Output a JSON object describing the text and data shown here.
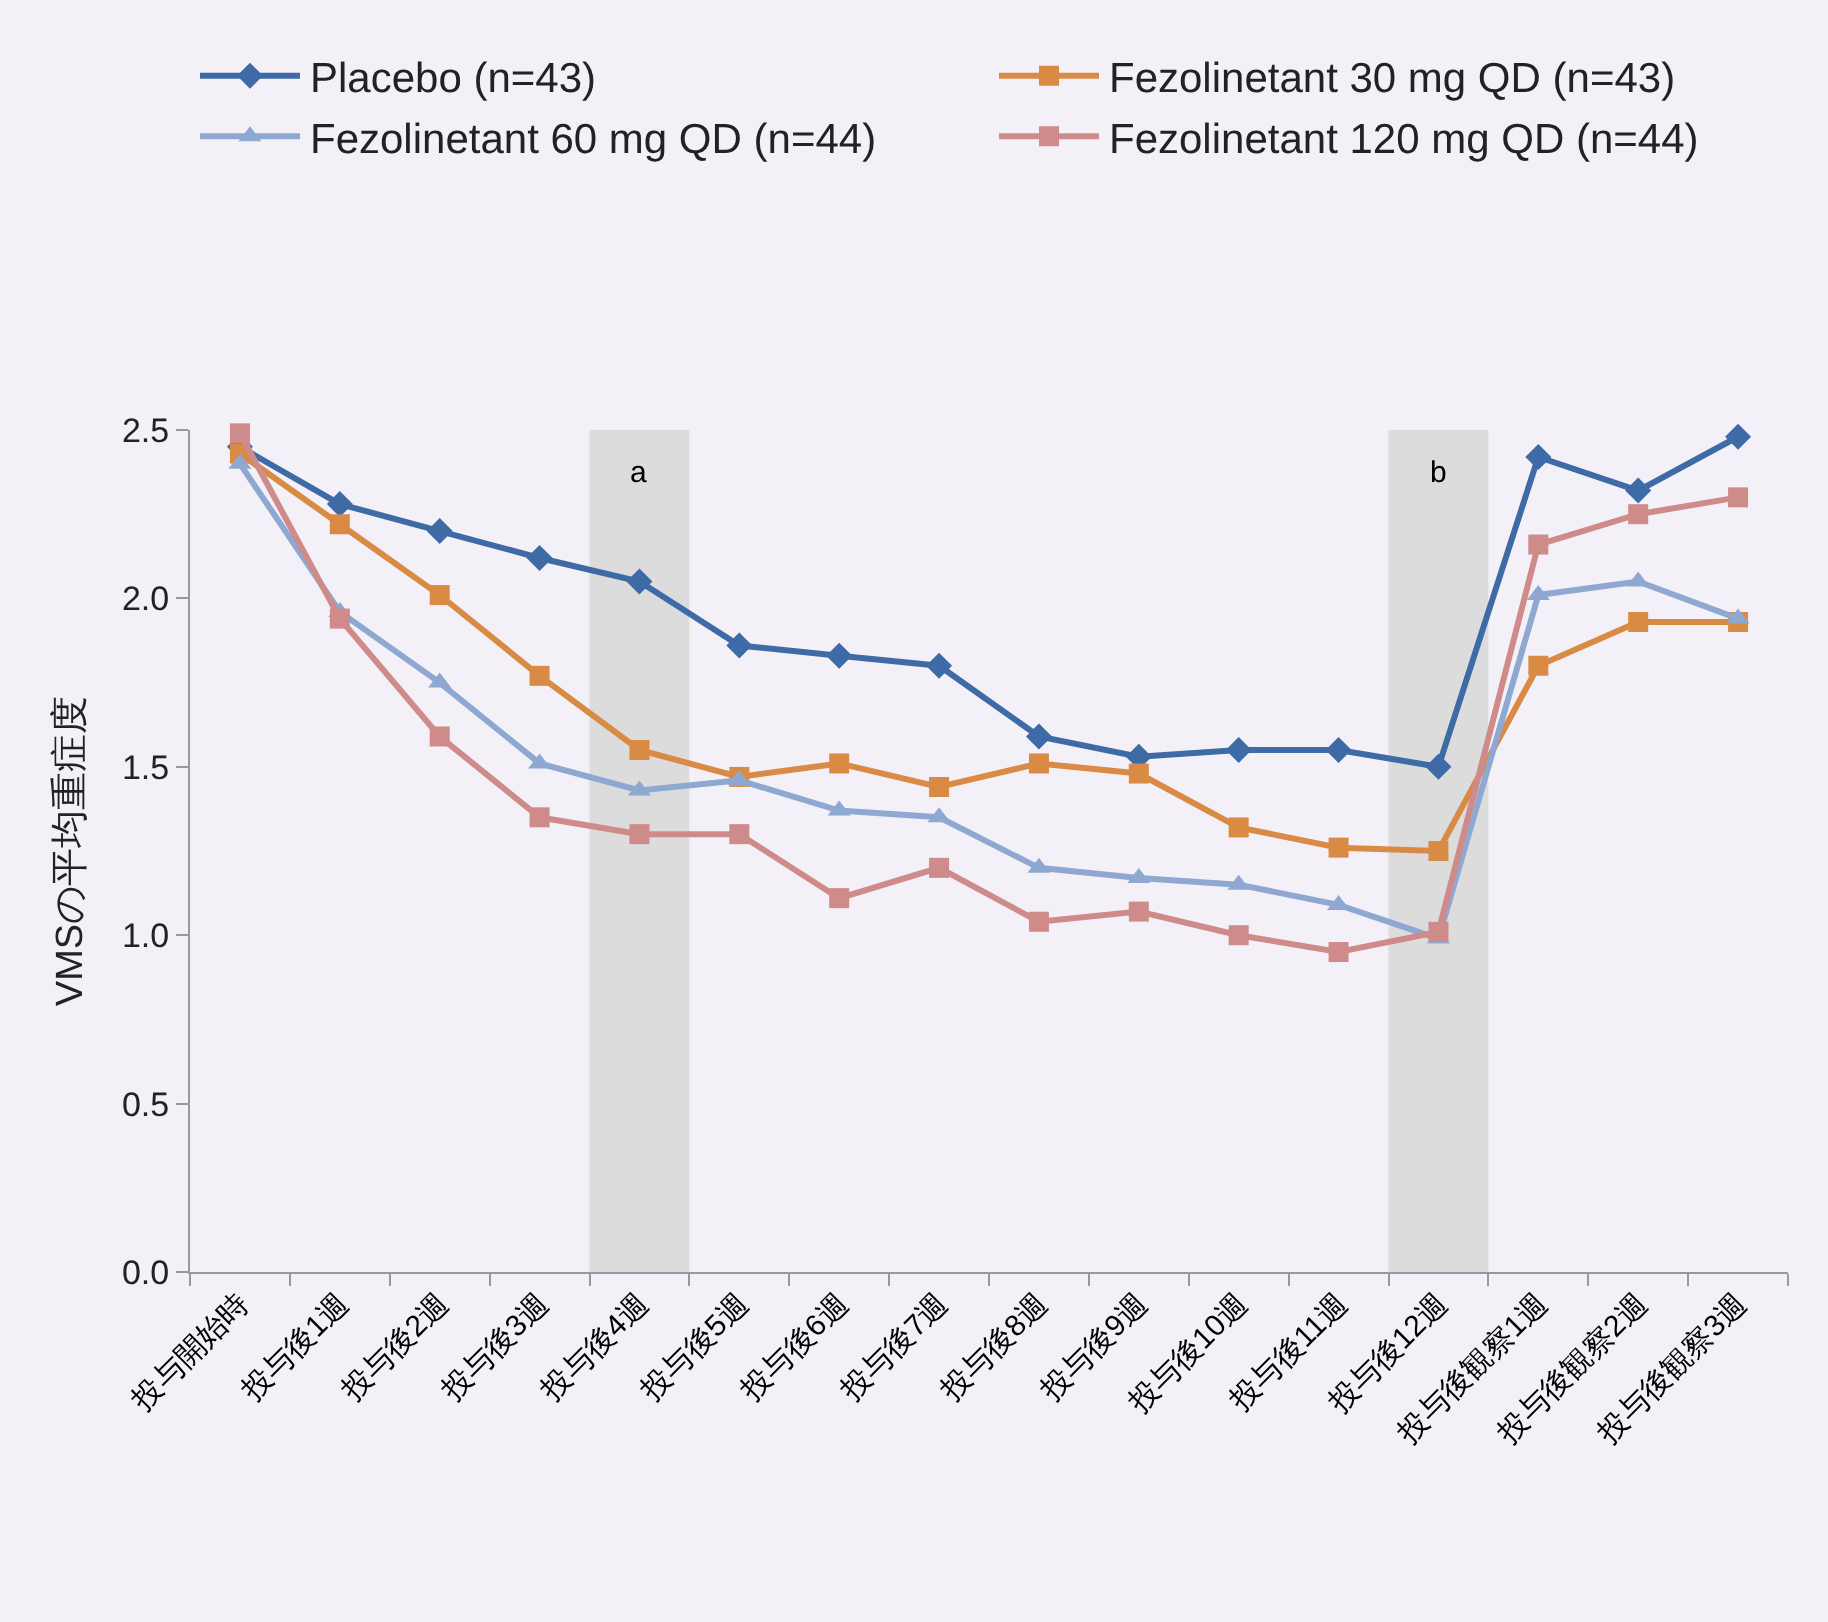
{
  "chart_data": {
    "type": "line",
    "ylabel": "VMSの平均重症度",
    "categories": [
      "投与開始時",
      "投与後1週",
      "投与後2週",
      "投与後3週",
      "投与後4週",
      "投与後5週",
      "投与後6週",
      "投与後7週",
      "投与後8週",
      "投与後9週",
      "投与後10週",
      "投与後11週",
      "投与後12週",
      "投与後観察1週",
      "投与後観察2週",
      "投与後観察3週"
    ],
    "series": [
      {
        "name": "Placebo (n=43)",
        "color": "#3e6aa6",
        "marker": "diamond",
        "values": [
          2.45,
          2.28,
          2.2,
          2.12,
          2.05,
          1.86,
          1.83,
          1.8,
          1.59,
          1.53,
          1.55,
          1.55,
          1.5,
          2.42,
          2.32,
          2.48
        ]
      },
      {
        "name": "Fezolinetant 30 mg QD (n=43)",
        "color": "#d98b45",
        "marker": "square",
        "values": [
          2.43,
          2.22,
          2.01,
          1.77,
          1.55,
          1.47,
          1.51,
          1.44,
          1.51,
          1.48,
          1.32,
          1.26,
          1.25,
          1.8,
          1.93,
          1.93
        ]
      },
      {
        "name": "Fezolinetant 60 mg QD (n=44)",
        "color": "#8fa8d2",
        "marker": "triangle",
        "values": [
          2.4,
          1.96,
          1.75,
          1.51,
          1.43,
          1.46,
          1.37,
          1.35,
          1.2,
          1.17,
          1.15,
          1.09,
          0.99,
          2.01,
          2.05,
          1.94
        ]
      },
      {
        "name": "Fezolinetant 120 mg QD (n=44)",
        "color": "#cf8a8a",
        "marker": "square",
        "values": [
          2.49,
          1.94,
          1.59,
          1.35,
          1.3,
          1.3,
          1.11,
          1.2,
          1.04,
          1.07,
          1.0,
          0.95,
          1.01,
          2.16,
          2.25,
          2.3
        ]
      }
    ],
    "ylim": [
      0,
      2.5
    ],
    "yticks": [
      {
        "value": 0,
        "label": "0.0"
      },
      {
        "value": 0.5,
        "label": "0.5"
      },
      {
        "value": 1,
        "label": "1.0"
      },
      {
        "value": 1.5,
        "label": "1.5"
      },
      {
        "value": 2,
        "label": "2.0"
      },
      {
        "value": 2.5,
        "label": "2.5"
      }
    ],
    "bands": [
      {
        "axis": "x",
        "from": "投与後4週",
        "to": "投与後4週",
        "label": "a",
        "color": "#dcdcdc"
      },
      {
        "axis": "x",
        "from": "投与後12週",
        "to": "投与後12週",
        "label": "b",
        "color": "#dcdcdc"
      }
    ],
    "grid": false,
    "legend": "top",
    "line_style": "solid"
  }
}
